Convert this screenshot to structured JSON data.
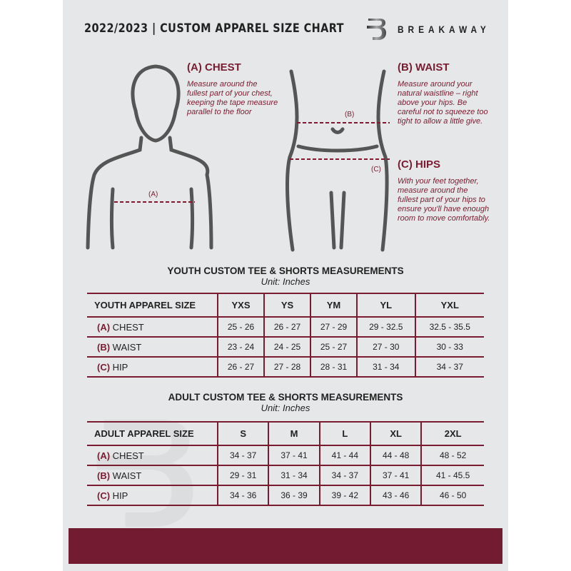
{
  "header": {
    "title": "2022/2023  |  CUSTOM APPAREL SIZE CHART",
    "brand": "BREAKAWAY"
  },
  "measures": {
    "chest": {
      "label": "(A) CHEST",
      "desc": "Measure around the fullest part of your chest, keeping the tape measure parallel to the floor",
      "marker": "(A)"
    },
    "waist": {
      "label": "(B) WAIST",
      "desc": "Measure around your natural waistline – right above your hips. Be careful not to squeeze too tight to allow a little give.",
      "marker": "(B)"
    },
    "hips": {
      "label": "(C) HIPS",
      "desc": "With your feet together, measure around the fullest part of your hips to ensure you'll have enough room to move comfortably.",
      "marker": "(C)"
    }
  },
  "accent_color": "#7a1c31",
  "youth": {
    "title": "YOUTH CUSTOM TEE & SHORTS MEASUREMENTS",
    "unit": "Unit: Inches",
    "header": [
      "YOUTH APPAREL SIZE",
      "YXS",
      "YS",
      "YM",
      "YL",
      "YXL"
    ],
    "rows": [
      {
        "letter": "(A)",
        "name": "CHEST",
        "values": [
          "25 - 26",
          "26 - 27",
          "27 - 29",
          "29 - 32.5",
          "32.5 - 35.5"
        ]
      },
      {
        "letter": "(B)",
        "name": "WAIST",
        "values": [
          "23 - 24",
          "24 - 25",
          "25 - 27",
          "27 - 30",
          "30 - 33"
        ]
      },
      {
        "letter": "(C)",
        "name": "HIP",
        "values": [
          "26 - 27",
          "27 - 28",
          "28 - 31",
          "31 - 34",
          "34 - 37"
        ]
      }
    ]
  },
  "adult": {
    "title": "ADULT CUSTOM TEE & SHORTS MEASUREMENTS",
    "unit": "Unit: Inches",
    "header": [
      "ADULT APPAREL SIZE",
      "S",
      "M",
      "L",
      "XL",
      "2XL"
    ],
    "rows": [
      {
        "letter": "(A)",
        "name": "CHEST",
        "values": [
          "34 - 37",
          "37 - 41",
          "41 - 44",
          "44 - 48",
          "48 - 52"
        ]
      },
      {
        "letter": "(B)",
        "name": "WAIST",
        "values": [
          "29 - 31",
          "31 - 34",
          "34 - 37",
          "37 - 41",
          "41 - 45.5"
        ]
      },
      {
        "letter": "(C)",
        "name": "HIP",
        "values": [
          "34 - 36",
          "36 - 39",
          "39 - 42",
          "43 - 46",
          "46 - 50"
        ]
      }
    ]
  }
}
